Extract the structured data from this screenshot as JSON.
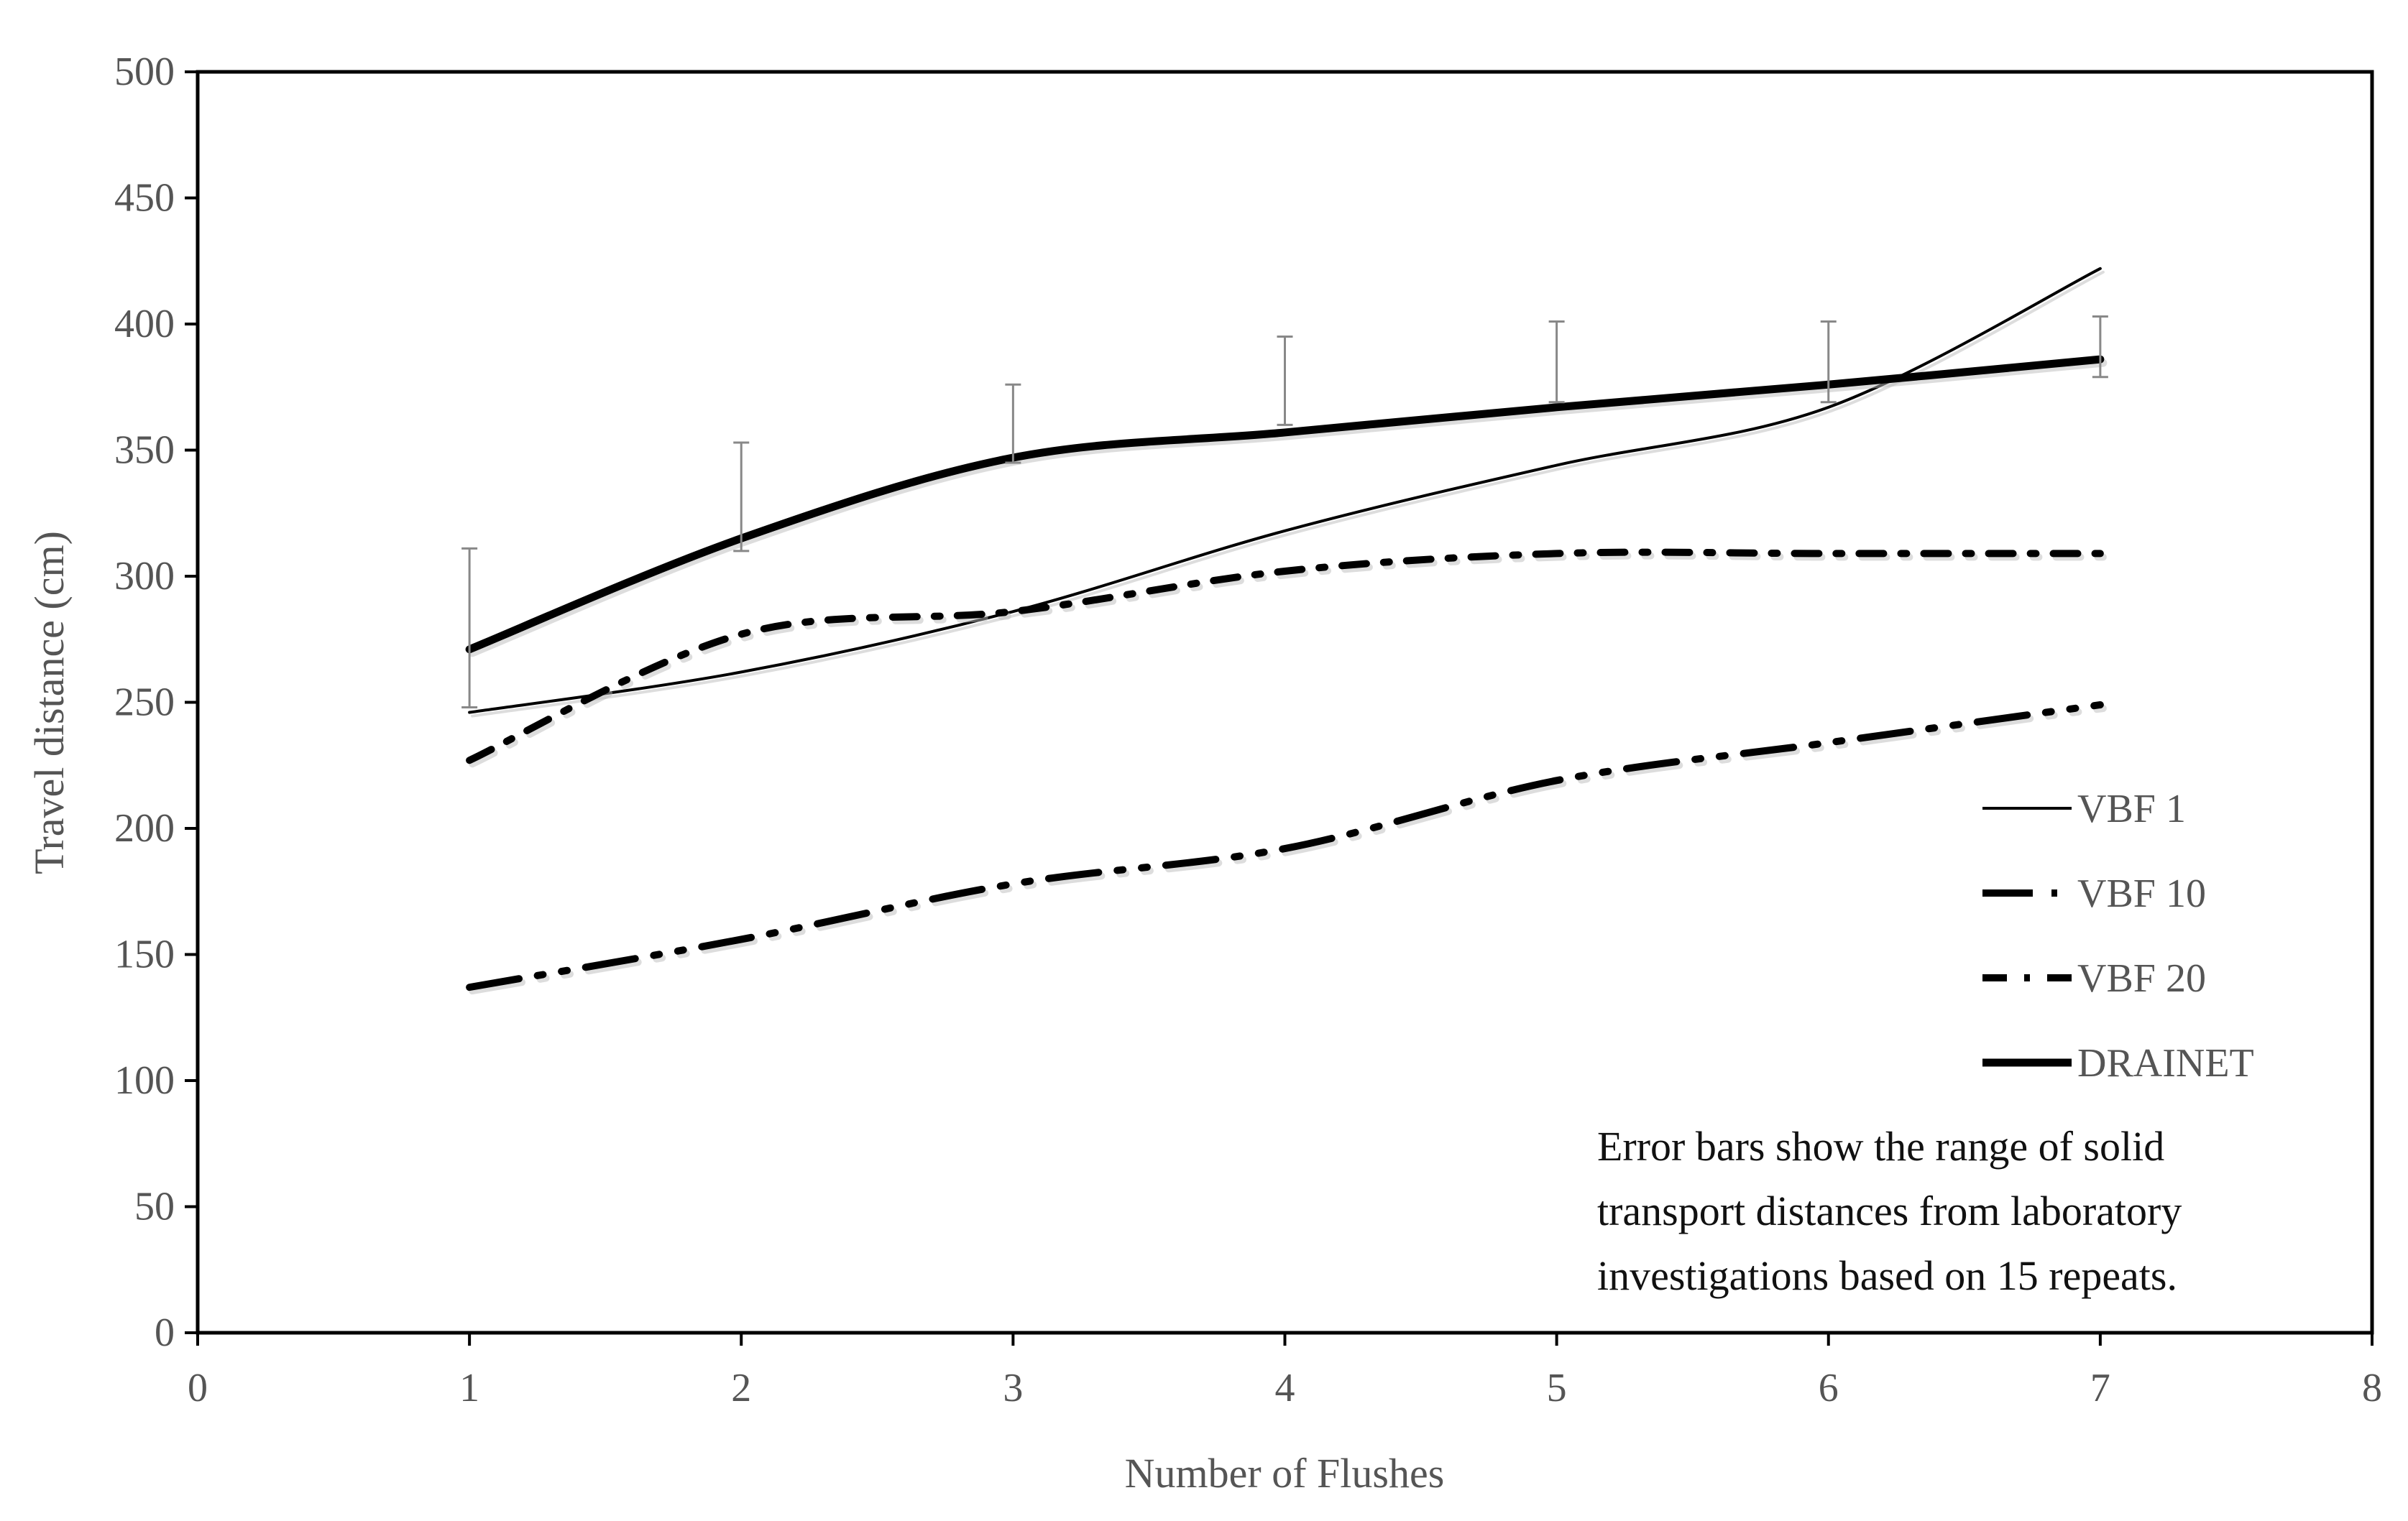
{
  "chart_data": {
    "type": "line",
    "title": "",
    "xlabel": "Number of Flushes",
    "ylabel": "Travel distance (cm)",
    "xlim": [
      0,
      8
    ],
    "ylim": [
      0,
      500
    ],
    "x_ticks": [
      "0",
      "1",
      "2",
      "3",
      "4",
      "5",
      "6",
      "7",
      "8"
    ],
    "y_ticks": [
      "0",
      "50",
      "100",
      "150",
      "200",
      "250",
      "300",
      "350",
      "400",
      "450",
      "500"
    ],
    "grid": false,
    "legend_position": "right",
    "x": [
      1,
      2,
      3,
      4,
      5,
      6,
      7
    ],
    "series": [
      {
        "name": "VBF 1",
        "style": "thin-solid",
        "values": [
          246,
          262,
          286,
          318,
          344,
          367,
          422
        ]
      },
      {
        "name": "VBF 10",
        "style": "long-dash-dot-dot",
        "values": [
          137,
          156,
          178,
          192,
          219,
          234,
          249
        ]
      },
      {
        "name": "VBF 20",
        "style": "dash-dot",
        "values": [
          227,
          277,
          286,
          302,
          309,
          309,
          309
        ]
      },
      {
        "name": "DRAINET",
        "style": "thick-solid",
        "values": [
          271,
          315,
          347,
          357,
          367,
          376,
          386
        ],
        "error_bar_upper": [
          311,
          353,
          376,
          395,
          401,
          401,
          403
        ],
        "error_bar_lower": [
          248,
          310,
          345,
          360,
          369,
          369,
          379
        ]
      }
    ],
    "annotation": [
      "Error bars show the range of solid",
      "transport distances  from laboratory",
      "investigations based on 15 repeats."
    ],
    "colors": {
      "line": "#000000",
      "shadow": "#bbbbbb",
      "error_bar": "#888888",
      "axis_text": "#555555"
    }
  }
}
